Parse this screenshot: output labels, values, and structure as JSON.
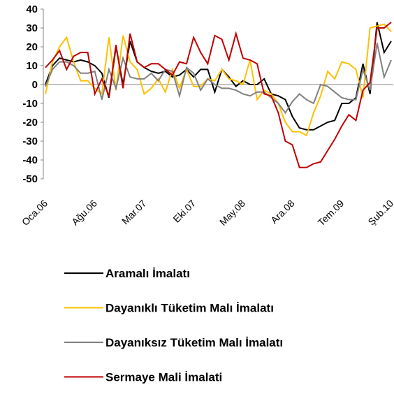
{
  "chart_data": {
    "type": "line",
    "categories": [
      "Oca.06",
      null,
      null,
      null,
      null,
      null,
      null,
      "Ağu.06",
      null,
      null,
      null,
      null,
      null,
      null,
      "Mar.07",
      null,
      null,
      null,
      null,
      null,
      null,
      "Eki.07",
      null,
      null,
      null,
      null,
      null,
      null,
      "May.08",
      null,
      null,
      null,
      null,
      null,
      null,
      "Ara.08",
      null,
      null,
      null,
      null,
      null,
      null,
      "Tem.09",
      null,
      null,
      null,
      null,
      null,
      null,
      "Şub.10"
    ],
    "ylim": [
      -50,
      40
    ],
    "yticks": [
      -50,
      -40,
      -30,
      -20,
      -10,
      0,
      10,
      20,
      30,
      40
    ],
    "legend": "bottom",
    "series": [
      {
        "name": "Aramalı İmalatı",
        "color": "#000000",
        "values": [
          0,
          10,
          14,
          13,
          12,
          13,
          12,
          10,
          6,
          -7,
          20,
          0,
          23,
          12,
          9,
          7,
          6,
          7,
          4,
          5,
          8,
          4,
          8,
          8,
          -4,
          8,
          4,
          -1,
          2,
          0,
          0,
          3,
          -5,
          -6,
          -8,
          -17,
          -23,
          -24,
          -24,
          -22,
          -20,
          -19,
          -10,
          -10,
          -7,
          11,
          -5,
          33,
          17,
          23
        ]
      },
      {
        "name": "Dayanıklı Tüketim Malı İmalatı",
        "color": "#ffc000",
        "values": [
          -5,
          12,
          20,
          25,
          12,
          2,
          2,
          -2,
          -5,
          25,
          -3,
          26,
          12,
          8,
          -5,
          -2,
          3,
          -4,
          8,
          -2,
          8,
          -1,
          -1,
          3,
          2,
          8,
          3,
          2,
          0,
          13,
          -8,
          -3,
          -5,
          -10,
          -20,
          -25,
          -25,
          -27,
          -15,
          -6,
          7,
          3,
          12,
          11,
          8,
          -7,
          30,
          31,
          32,
          28
        ]
      },
      {
        "name": "Dayanıksız Tüketim Malı İmalatı",
        "color": "#808080",
        "values": [
          -1,
          8,
          12,
          12,
          10,
          6,
          6,
          7,
          -8,
          8,
          -2,
          14,
          4,
          3,
          3,
          6,
          2,
          8,
          7,
          -6,
          9,
          6,
          -3,
          3,
          0,
          -2,
          -2,
          -3,
          -5,
          -6,
          -4,
          -4,
          -7,
          -10,
          -15,
          -9,
          -5,
          -8,
          -10,
          0,
          -1,
          -4,
          -7,
          -8,
          -8,
          8,
          -3,
          22,
          4,
          13
        ]
      },
      {
        "name": "Sermaye Mali İmalati",
        "color": "#c00000",
        "values": [
          9,
          13,
          18,
          8,
          15,
          17,
          17,
          -5,
          3,
          -6,
          21,
          -2,
          27,
          12,
          9,
          11,
          11,
          8,
          5,
          12,
          11,
          25,
          17,
          11,
          26,
          24,
          13,
          27,
          14,
          13,
          11,
          -5,
          -6,
          -15,
          -30,
          -32,
          -44,
          -44,
          -42,
          -41,
          -35,
          -29,
          -22,
          -16,
          -19,
          -3,
          1,
          30,
          30,
          33
        ]
      }
    ]
  }
}
